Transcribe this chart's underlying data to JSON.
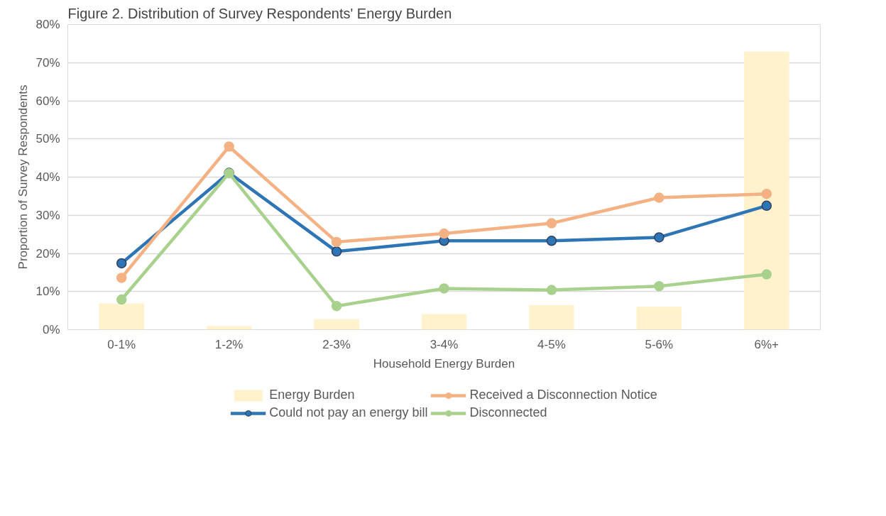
{
  "chart_data": {
    "type": "line",
    "title": "Figure 2. Distribution of Survey Respondents' Energy Burden",
    "xlabel": "Household Energy Burden",
    "ylabel": "Proportion of Survey Respondents",
    "categories": [
      "0-1%",
      "1-2%",
      "2-3%",
      "3-4%",
      "4-5%",
      "5-6%",
      "6%+"
    ],
    "series": [
      {
        "name": "Energy Burden",
        "type": "bar",
        "color": "#fff2cc",
        "values": [
          6.9,
          1.0,
          2.8,
          4.1,
          6.4,
          6.0,
          72.9
        ]
      },
      {
        "name": "Could not pay an energy bill",
        "color": "#2e75b6",
        "values": [
          17.4,
          41.1,
          20.5,
          23.3,
          23.3,
          24.2,
          32.5
        ]
      },
      {
        "name": "Received a Disconnection Notice",
        "color": "#f4b183",
        "values": [
          13.6,
          48.0,
          23.0,
          25.2,
          27.9,
          34.6,
          35.6
        ]
      },
      {
        "name": "Disconnected",
        "color": "#a9d18e",
        "values": [
          7.9,
          41.0,
          6.2,
          10.8,
          10.4,
          11.4,
          14.5
        ]
      }
    ],
    "ylim": [
      0,
      80
    ],
    "yticks": [
      {
        "value": 0,
        "label": "0%"
      },
      {
        "value": 10,
        "label": "10%"
      },
      {
        "value": 20,
        "label": "20%"
      },
      {
        "value": 30,
        "label": "30%"
      },
      {
        "value": 40,
        "label": "40%"
      },
      {
        "value": 50,
        "label": "50%"
      },
      {
        "value": 60,
        "label": "60%"
      },
      {
        "value": 70,
        "label": "70%"
      },
      {
        "value": 80,
        "label": "80%"
      }
    ],
    "grid": "y",
    "legend": "bottom",
    "marker": "circle",
    "line_style": "solid"
  }
}
